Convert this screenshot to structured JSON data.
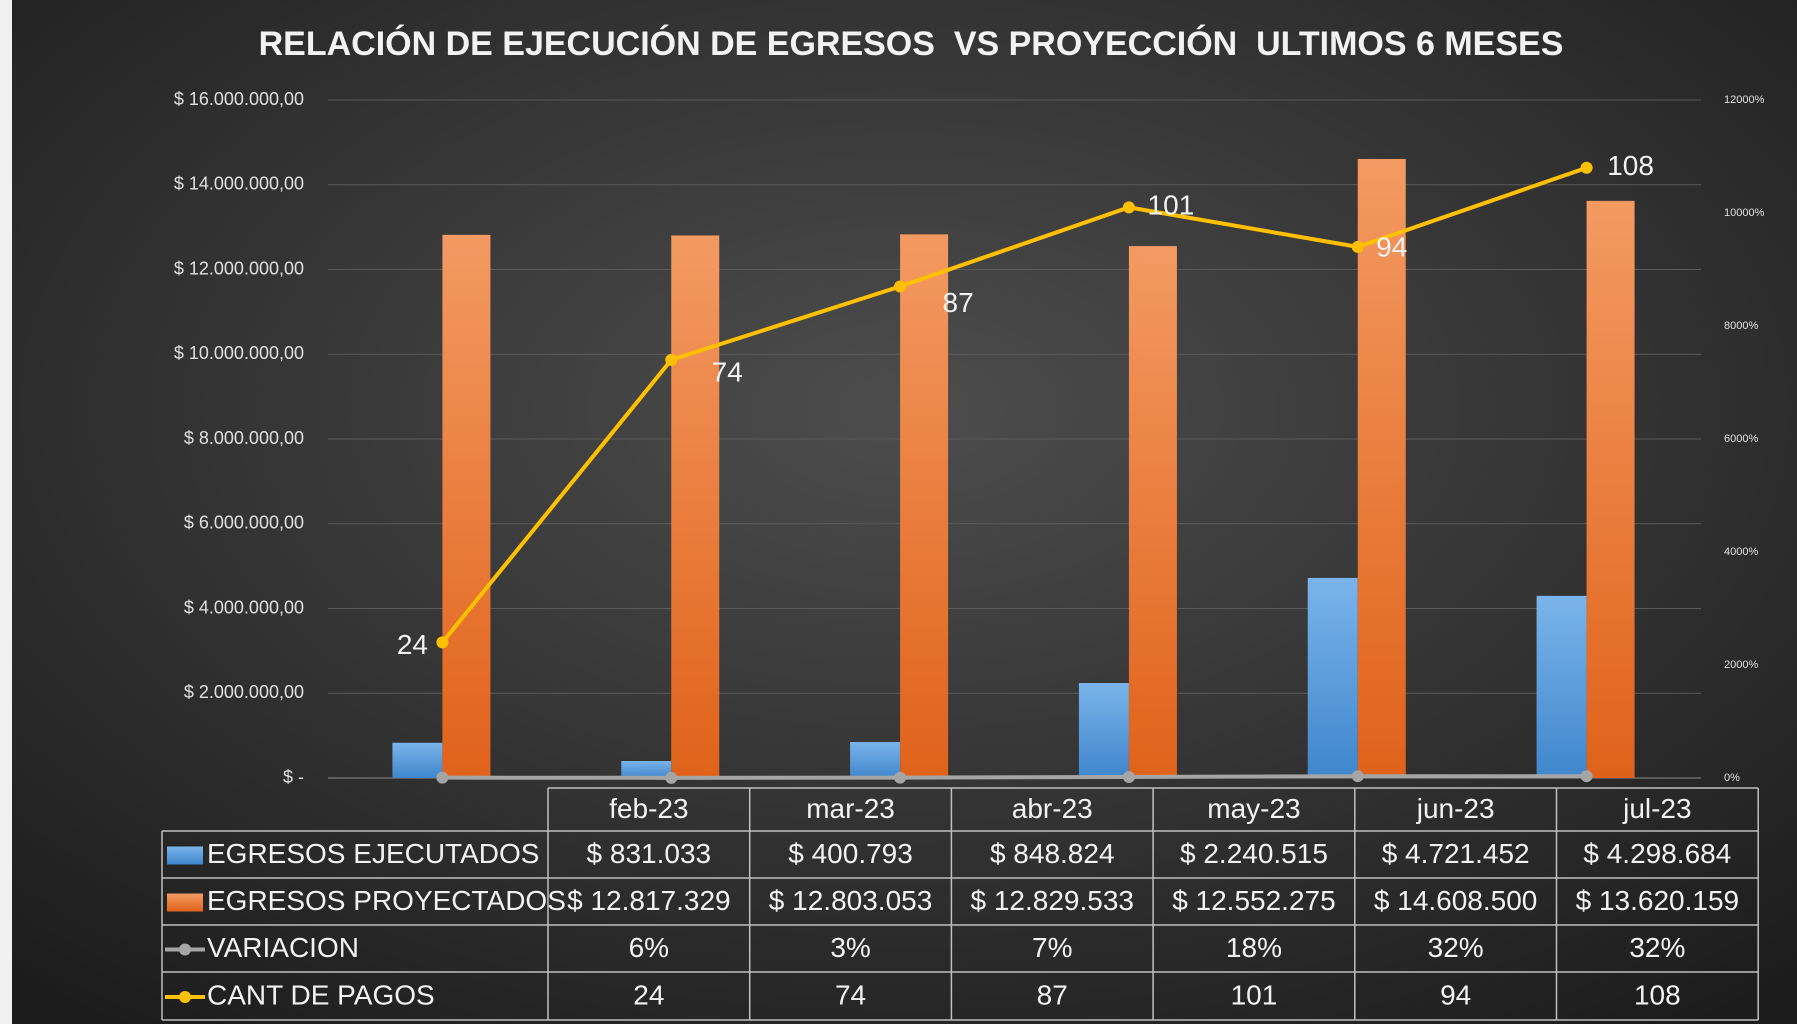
{
  "chart_data": {
    "type": "bar",
    "title": "RELACIÓN DE EJECUCIÓN DE EGRESOS  VS PROYECCIÓN  ULTIMOS 6 MESES",
    "categories": [
      "feb-23",
      "mar-23",
      "abr-23",
      "may-23",
      "jun-23",
      "jul-23"
    ],
    "series": [
      {
        "name": "EGRESOS EJECUTADOS",
        "type": "bar",
        "color": "#5b9bd5",
        "values": [
          831033,
          400793,
          848824,
          2240515,
          4721452,
          4298684
        ],
        "value_labels": [
          "$ 831.033",
          "$ 400.793",
          "$ 848.824",
          "$ 2.240.515",
          "$ 4.721.452",
          "$ 4.298.684"
        ]
      },
      {
        "name": "EGRESOS PROYECTADOS",
        "type": "bar",
        "color": "#ed7d31",
        "values": [
          12817329,
          12803053,
          12829533,
          12552275,
          14608500,
          13620159
        ],
        "value_labels": [
          "$ 12.817.329",
          "$ 12.803.053",
          "$ 12.829.533",
          "$ 12.552.275",
          "$ 14.608.500",
          "$ 13.620.159"
        ]
      },
      {
        "name": "VARIACION",
        "type": "line",
        "axis": "y2",
        "color": "#a5a5a5",
        "values": [
          0.06,
          0.03,
          0.07,
          0.18,
          0.32,
          0.32
        ],
        "value_labels": [
          "6%",
          "3%",
          "7%",
          "18%",
          "32%",
          "32%"
        ]
      },
      {
        "name": "CANT DE PAGOS",
        "type": "line",
        "axis": "y2",
        "color": "#ffc000",
        "values": [
          24,
          74,
          87,
          101,
          94,
          108
        ]
      }
    ],
    "ylim": [
      0,
      16000000
    ],
    "yticks": [
      {
        "value": 0,
        "label": "$ -"
      },
      {
        "value": 2000000,
        "label": "$ 2.000.000,00"
      },
      {
        "value": 4000000,
        "label": "$ 4.000.000,00"
      },
      {
        "value": 6000000,
        "label": "$ 6.000.000,00"
      },
      {
        "value": 8000000,
        "label": "$ 8.000.000,00"
      },
      {
        "value": 10000000,
        "label": "$ 10.000.000,00"
      },
      {
        "value": 12000000,
        "label": "$ 12.000.000,00"
      },
      {
        "value": 14000000,
        "label": "$ 14.000.000,00"
      },
      {
        "value": 16000000,
        "label": "$ 16.000.000,00"
      }
    ],
    "y2lim": [
      0,
      120
    ],
    "y2ticks": [
      {
        "value": 0,
        "label": "0%"
      },
      {
        "value": 20,
        "label": "2000%"
      },
      {
        "value": 40,
        "label": "4000%"
      },
      {
        "value": 60,
        "label": "6000%"
      },
      {
        "value": 80,
        "label": "8000%"
      },
      {
        "value": 100,
        "label": "10000%"
      },
      {
        "value": 120,
        "label": "12000%"
      }
    ],
    "grid": true
  }
}
